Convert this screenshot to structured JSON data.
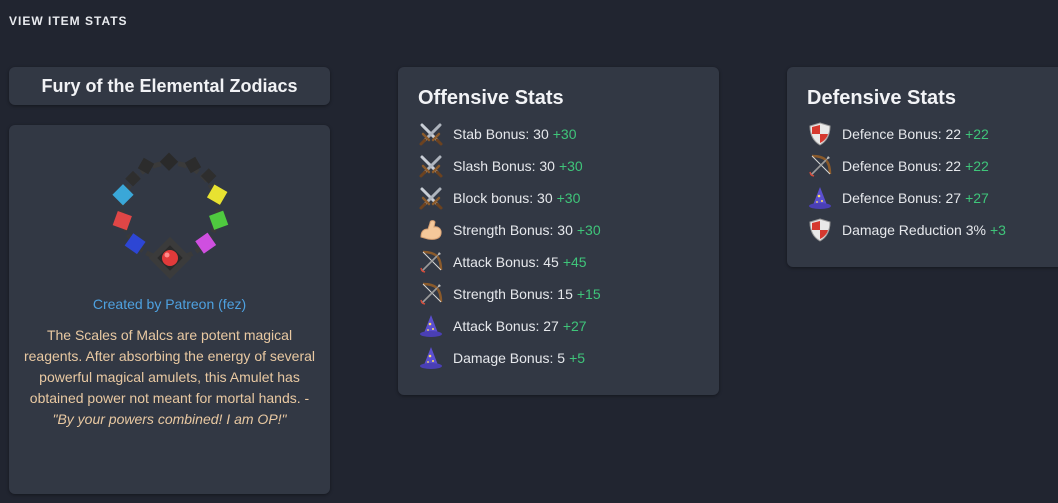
{
  "page": {
    "heading": "VIEW ITEM STATS"
  },
  "item": {
    "name": "Fury of the Elemental Zodiacs",
    "image_icon": "amulet-icon",
    "creator": "Created by Patreon (fez)",
    "description": "The Scales of Malcs are potent magical reagents. After absorbing the energy of several powerful magical amulets, this Amulet has obtained power not meant for mortal hands. - ",
    "quote": "\"By your powers combined! I am OP!\""
  },
  "offensive": {
    "title": "Offensive Stats",
    "stats": [
      {
        "icon": "crossed-swords-icon",
        "label": "Stab Bonus: 30",
        "bonus": "+30"
      },
      {
        "icon": "crossed-swords-icon",
        "label": "Slash Bonus: 30",
        "bonus": "+30"
      },
      {
        "icon": "crossed-swords-icon",
        "label": "Block bonus: 30",
        "bonus": "+30"
      },
      {
        "icon": "flexed-bicep-icon",
        "label": "Strength Bonus: 30",
        "bonus": "+30"
      },
      {
        "icon": "bow-and-arrow-icon",
        "label": "Attack Bonus: 45",
        "bonus": "+45"
      },
      {
        "icon": "bow-and-arrow-icon",
        "label": "Strength Bonus: 15",
        "bonus": "+15"
      },
      {
        "icon": "wizard-hat-icon",
        "label": "Attack Bonus: 27",
        "bonus": "+27"
      },
      {
        "icon": "wizard-hat-icon",
        "label": "Damage Bonus: 5",
        "bonus": "+5"
      }
    ]
  },
  "defensive": {
    "title": "Defensive Stats",
    "stats": [
      {
        "icon": "shield-icon",
        "label": "Defence Bonus: 22",
        "bonus": "+22"
      },
      {
        "icon": "bow-and-arrow-icon",
        "label": "Defence Bonus: 22",
        "bonus": "+22"
      },
      {
        "icon": "wizard-hat-icon",
        "label": "Defence Bonus: 27",
        "bonus": "+27"
      },
      {
        "icon": "shield-icon",
        "label": "Damage Reduction 3%",
        "bonus": "+3"
      }
    ]
  },
  "colors": {
    "background": "#212530",
    "card": "#323844",
    "bonus": "#3fc57a",
    "creator_link": "#4ea1e0",
    "description": "#e9c9a2"
  }
}
